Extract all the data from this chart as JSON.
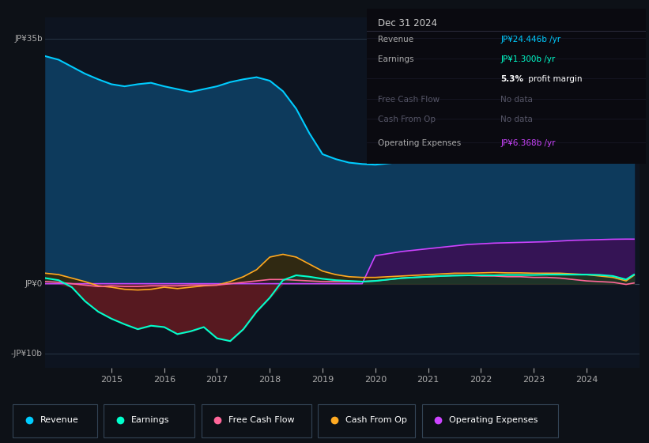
{
  "bg_color": "#0d1117",
  "chart_bg": "#0d1420",
  "years": [
    2013.75,
    2014.0,
    2014.25,
    2014.5,
    2014.75,
    2015.0,
    2015.25,
    2015.5,
    2015.75,
    2016.0,
    2016.25,
    2016.5,
    2016.75,
    2017.0,
    2017.25,
    2017.5,
    2017.75,
    2018.0,
    2018.25,
    2018.5,
    2018.75,
    2019.0,
    2019.25,
    2019.5,
    2019.75,
    2020.0,
    2020.25,
    2020.5,
    2020.75,
    2021.0,
    2021.25,
    2021.5,
    2021.75,
    2022.0,
    2022.25,
    2022.5,
    2022.75,
    2023.0,
    2023.25,
    2023.5,
    2023.75,
    2024.0,
    2024.25,
    2024.5,
    2024.75,
    2024.9
  ],
  "revenue": [
    32.5,
    32.0,
    31.0,
    30.0,
    29.2,
    28.5,
    28.2,
    28.5,
    28.7,
    28.2,
    27.8,
    27.4,
    27.8,
    28.2,
    28.8,
    29.2,
    29.5,
    29.0,
    27.5,
    25.0,
    21.5,
    18.5,
    17.8,
    17.3,
    17.1,
    17.0,
    17.2,
    17.4,
    17.8,
    18.2,
    18.7,
    19.2,
    19.7,
    20.2,
    20.7,
    21.2,
    21.8,
    22.3,
    22.6,
    23.0,
    23.4,
    23.8,
    24.0,
    24.2,
    24.4,
    24.446
  ],
  "earnings": [
    0.8,
    0.5,
    -0.5,
    -2.5,
    -4.0,
    -5.0,
    -5.8,
    -6.5,
    -6.0,
    -6.2,
    -7.2,
    -6.8,
    -6.2,
    -7.8,
    -8.2,
    -6.5,
    -4.0,
    -2.0,
    0.5,
    1.2,
    1.0,
    0.7,
    0.5,
    0.4,
    0.3,
    0.4,
    0.6,
    0.8,
    0.9,
    1.0,
    1.1,
    1.15,
    1.2,
    1.2,
    1.2,
    1.25,
    1.25,
    1.25,
    1.3,
    1.3,
    1.3,
    1.3,
    1.25,
    1.1,
    0.6,
    1.3
  ],
  "cash_from_op": [
    1.5,
    1.3,
    0.8,
    0.3,
    -0.3,
    -0.5,
    -0.8,
    -0.9,
    -0.8,
    -0.5,
    -0.7,
    -0.5,
    -0.3,
    -0.2,
    0.3,
    1.0,
    2.0,
    3.8,
    4.2,
    3.8,
    2.8,
    1.8,
    1.3,
    1.0,
    0.9,
    0.9,
    1.0,
    1.1,
    1.2,
    1.3,
    1.4,
    1.5,
    1.5,
    1.55,
    1.6,
    1.55,
    1.55,
    1.5,
    1.5,
    1.5,
    1.4,
    1.3,
    1.1,
    0.9,
    0.4,
    1.2
  ],
  "free_cash_flow": [
    0.3,
    0.2,
    0.0,
    -0.2,
    -0.4,
    -0.3,
    -0.4,
    -0.4,
    -0.3,
    -0.3,
    -0.3,
    -0.2,
    -0.2,
    -0.2,
    0.0,
    0.2,
    0.4,
    0.6,
    0.6,
    0.5,
    0.4,
    0.3,
    0.3,
    0.3,
    0.3,
    0.4,
    0.6,
    0.8,
    0.9,
    1.0,
    1.1,
    1.2,
    1.2,
    1.1,
    1.1,
    1.0,
    1.0,
    0.9,
    0.9,
    0.8,
    0.6,
    0.4,
    0.3,
    0.2,
    -0.1,
    0.1
  ],
  "operating_expenses": [
    0,
    0,
    0,
    0,
    0,
    0,
    0,
    0,
    0,
    0,
    0,
    0,
    0,
    0,
    0,
    0,
    0,
    0,
    0,
    0,
    0,
    0,
    0,
    0,
    0,
    4.0,
    4.3,
    4.6,
    4.8,
    5.0,
    5.2,
    5.4,
    5.6,
    5.7,
    5.8,
    5.85,
    5.9,
    5.95,
    6.0,
    6.1,
    6.2,
    6.25,
    6.3,
    6.35,
    6.37,
    6.368
  ],
  "ylim": [
    -12,
    38
  ],
  "xlim": [
    2013.75,
    2025.0
  ],
  "xticks": [
    2015,
    2016,
    2017,
    2018,
    2019,
    2020,
    2021,
    2022,
    2023,
    2024
  ],
  "colors": {
    "revenue_line": "#00ccff",
    "revenue_fill": "#0d3a5c",
    "earnings_line": "#00ffcc",
    "earnings_fill_neg": "#5c1a20",
    "earnings_fill_pos": "#1a3a2a",
    "cash_from_op_line": "#ffaa22",
    "cash_from_op_fill": "#3a2500",
    "cash_from_op_fill_neg": "#3a1a00",
    "free_cash_flow_line": "#ff6699",
    "free_cash_flow_fill": "#3a0a20",
    "operating_expenses_line": "#cc44ff",
    "operating_expenses_fill": "#3a1055"
  },
  "legend_items": [
    {
      "label": "Revenue",
      "color": "#00ccff"
    },
    {
      "label": "Earnings",
      "color": "#00ffcc"
    },
    {
      "label": "Free Cash Flow",
      "color": "#ff6699"
    },
    {
      "label": "Cash From Op",
      "color": "#ffaa22"
    },
    {
      "label": "Operating Expenses",
      "color": "#cc44ff"
    }
  ],
  "info_box": {
    "date": "Dec 31 2024",
    "rows": [
      {
        "label": "Revenue",
        "value": "JP¥24.446b",
        "suffix": " /yr",
        "value_color": "#00ccff",
        "label_color": "#aaaaaa"
      },
      {
        "label": "Earnings",
        "value": "JP¥1.300b",
        "suffix": " /yr",
        "value_color": "#00ffcc",
        "label_color": "#aaaaaa"
      },
      {
        "label": "",
        "value": "5.3%",
        "suffix": " profit margin",
        "value_color": "#ffffff",
        "label_color": "#aaaaaa"
      },
      {
        "label": "Free Cash Flow",
        "value": "No data",
        "suffix": "",
        "value_color": "#555566",
        "label_color": "#555566"
      },
      {
        "label": "Cash From Op",
        "value": "No data",
        "suffix": "",
        "value_color": "#555566",
        "label_color": "#555566"
      },
      {
        "label": "Operating Expenses",
        "value": "JP¥6.368b",
        "suffix": " /yr",
        "value_color": "#cc44ff",
        "label_color": "#aaaaaa"
      }
    ]
  }
}
